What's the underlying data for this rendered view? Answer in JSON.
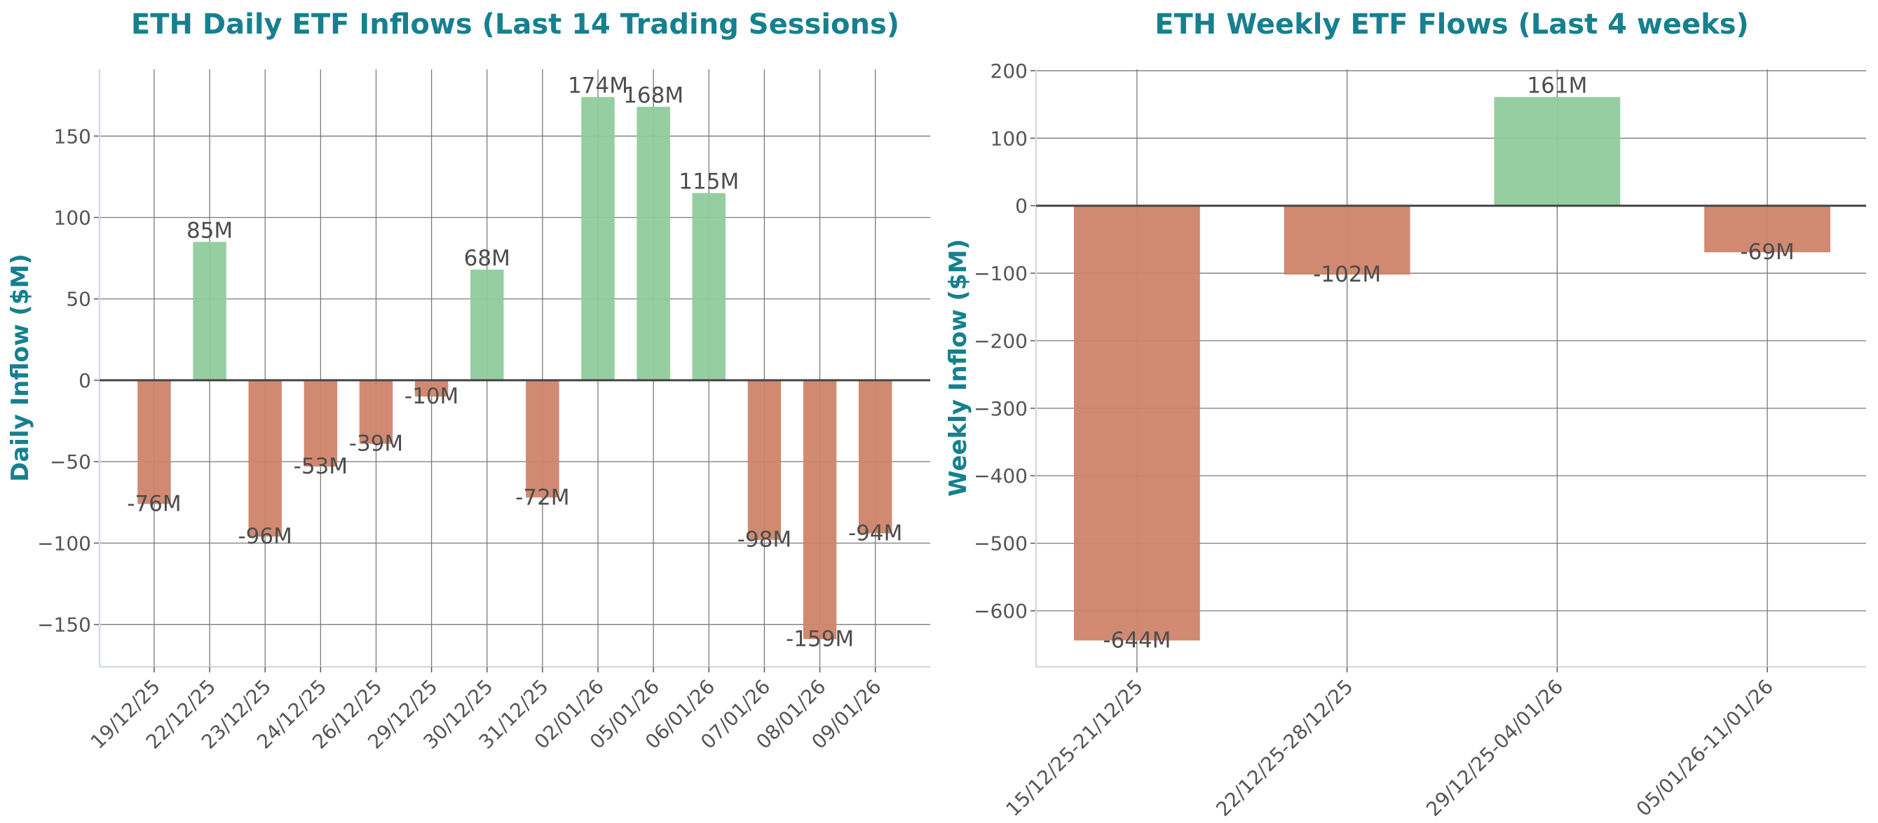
{
  "chart_data": [
    {
      "type": "bar",
      "title": "ETH Daily ETF Inflows (Last 14 Trading Sessions)",
      "xlabel": "",
      "ylabel": "Daily Inflow ($M)",
      "categories": [
        "19/12/25",
        "22/12/25",
        "23/12/25",
        "24/12/25",
        "26/12/25",
        "29/12/25",
        "30/12/25",
        "31/12/25",
        "02/01/26",
        "05/01/26",
        "06/01/26",
        "07/01/26",
        "08/01/26",
        "09/01/26"
      ],
      "values": [
        -76,
        85,
        -96,
        -53,
        -39,
        -10,
        68,
        -72,
        174,
        168,
        115,
        -98,
        -159,
        -94
      ],
      "data_labels": [
        "-76M",
        "85M",
        "-96M",
        "-53M",
        "-39M",
        "-10M",
        "68M",
        "-72M",
        "174M",
        "168M",
        "115M",
        "-98M",
        "-159M",
        "-94M"
      ],
      "ylim": [
        -176,
        191
      ],
      "yticks": [
        -150,
        -100,
        -50,
        0,
        50,
        100,
        150
      ],
      "ytick_labels": [
        "−150",
        "−100",
        "−50",
        "0",
        "50",
        "100",
        "150"
      ],
      "grid": true,
      "colors": {
        "positive": "#8fcb9b",
        "negative": "#cf8469"
      }
    },
    {
      "type": "bar",
      "title": "ETH Weekly ETF Flows (Last 4 weeks)",
      "xlabel": "",
      "ylabel": "Weekly Inflow ($M)",
      "categories": [
        "15/12/25-21/12/25",
        "22/12/25-28/12/25",
        "29/12/25-04/01/26",
        "05/01/26-11/01/26"
      ],
      "values": [
        -644,
        -102,
        161,
        -69
      ],
      "data_labels": [
        "-644M",
        "-102M",
        "161M",
        "-69M"
      ],
      "ylim": [
        -683,
        202
      ],
      "yticks": [
        -600,
        -500,
        -400,
        -300,
        -200,
        -100,
        0,
        100,
        200
      ],
      "ytick_labels": [
        "−600",
        "−500",
        "−400",
        "−300",
        "−200",
        "−100",
        "0",
        "100",
        "200"
      ],
      "grid": true,
      "colors": {
        "positive": "#8fcb9b",
        "negative": "#cf8469"
      }
    }
  ]
}
